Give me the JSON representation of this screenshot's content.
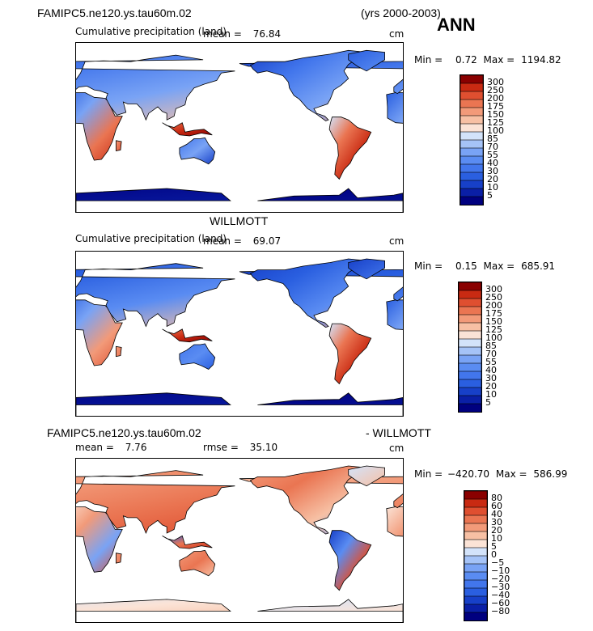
{
  "header": {
    "case_name": "FAMIPC5.ne120.ys.tau60m.02",
    "years": "(yrs 2000-2003)",
    "season": "ANN"
  },
  "panels": [
    {
      "subtitle": "Cumulative precipitation (land)",
      "mean_label": "mean =",
      "mean_value": "76.84",
      "units": "cm",
      "min_label": "Min =",
      "min_value": "0.72",
      "max_label": "Max =",
      "max_value": "1194.82"
    },
    {
      "title": "WILLMOTT",
      "subtitle": "Cumulative precipitation (land)",
      "mean_label": "mean =",
      "mean_value": "69.07",
      "units": "cm",
      "min_label": "Min =",
      "min_value": "0.15",
      "max_label": "Max =",
      "max_value": "685.91"
    },
    {
      "title_left": "FAMIPC5.ne120.ys.tau60m.02",
      "title_right": "- WILLMOTT",
      "mean_label": "mean =",
      "mean_value": "7.76",
      "rmse_label": "rmse =",
      "rmse_value": "35.10",
      "units": "cm",
      "min_label": "Min =",
      "min_value": "−420.70",
      "max_label": "Max =",
      "max_value": "586.99"
    }
  ],
  "chart_data": [
    {
      "type": "heatmap",
      "projection": "cylindrical-equidistant-global",
      "variable": "Cumulative precipitation (land)",
      "units": "cm",
      "mean": 76.84,
      "min": 0.72,
      "max": 1194.82,
      "colorbar_levels": [
        5,
        10,
        20,
        30,
        40,
        55,
        70,
        85,
        100,
        125,
        150,
        175,
        200,
        250,
        300
      ],
      "colorbar_colors": [
        "#00007f",
        "#0a1fa6",
        "#1740c8",
        "#2a5fe0",
        "#4276ec",
        "#5a8cf2",
        "#79a3f5",
        "#a5c3f7",
        "#d3e3fa",
        "#fbe3d6",
        "#f7c0a4",
        "#f29a79",
        "#ea7552",
        "#df4f30",
        "#c92a12",
        "#8a0000"
      ]
    },
    {
      "type": "heatmap",
      "projection": "cylindrical-equidistant-global",
      "variable": "Cumulative precipitation (land)",
      "units": "cm",
      "mean": 69.07,
      "min": 0.15,
      "max": 685.91,
      "colorbar_levels": [
        5,
        10,
        20,
        30,
        40,
        55,
        70,
        85,
        100,
        125,
        150,
        175,
        200,
        250,
        300
      ],
      "colorbar_colors": [
        "#00007f",
        "#0a1fa6",
        "#1740c8",
        "#2a5fe0",
        "#4276ec",
        "#5a8cf2",
        "#79a3f5",
        "#a5c3f7",
        "#d3e3fa",
        "#fbe3d6",
        "#f7c0a4",
        "#f29a79",
        "#ea7552",
        "#df4f30",
        "#c92a12",
        "#8a0000"
      ]
    },
    {
      "type": "heatmap",
      "projection": "cylindrical-equidistant-global",
      "variable": "Difference (model - WILLMOTT)",
      "units": "cm",
      "mean": 7.76,
      "rmse": 35.1,
      "min": -420.7,
      "max": 586.99,
      "colorbar_levels": [
        -80,
        -60,
        -40,
        -30,
        -20,
        -10,
        -5,
        0,
        5,
        10,
        20,
        30,
        40,
        60,
        80
      ],
      "colorbar_colors": [
        "#00007f",
        "#0a1fa6",
        "#1740c8",
        "#2a5fe0",
        "#4276ec",
        "#5a8cf2",
        "#79a3f5",
        "#a5c3f7",
        "#d3e3fa",
        "#fbe3d6",
        "#f7c0a4",
        "#f29a79",
        "#ea7552",
        "#df4f30",
        "#c92a12",
        "#8a0000"
      ]
    }
  ]
}
